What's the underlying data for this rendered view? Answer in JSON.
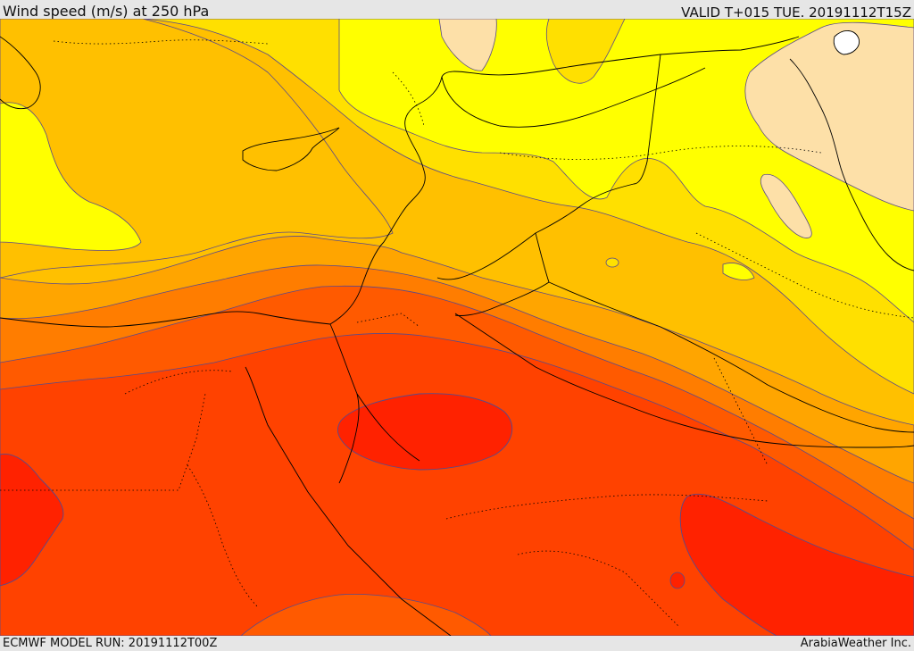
{
  "header": {
    "title": "Wind speed (m/s) at 250 hPa",
    "valid": "VALID T+015 TUE. 20191112T15Z"
  },
  "footer": {
    "run": "ECMWF MODEL RUN: 20191112T00Z",
    "credit": "ArabiaWeather Inc."
  },
  "palette": {
    "band_peach": "#fde0a8",
    "band_yellow": "#ffff00",
    "band_gold": "#ffe000",
    "band_amber": "#ffc000",
    "band_orange_light": "#ffa500",
    "band_orange": "#ff7d00",
    "band_orange_dark": "#ff5a00",
    "band_red_orange": "#ff4200",
    "band_red": "#ff2200",
    "contour_color": "#5a4a8a",
    "border_color": "#000000"
  }
}
